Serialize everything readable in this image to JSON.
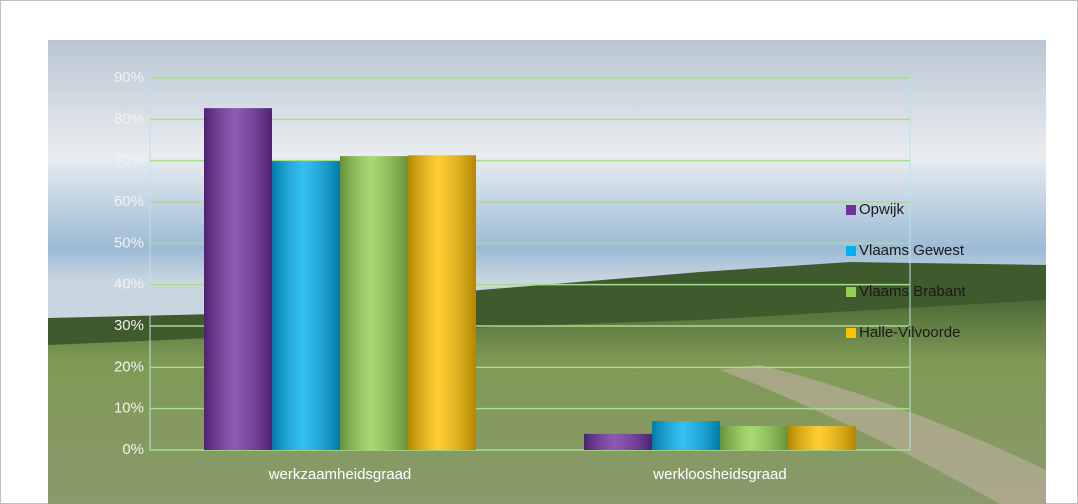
{
  "chart_data": {
    "type": "bar",
    "categories": [
      "werkzaamheidsgraad",
      "werkloosheidsgraad"
    ],
    "series": [
      {
        "name": "Opwijk",
        "color": "#7030a0",
        "values": [
          82.7,
          3.9
        ]
      },
      {
        "name": "Vlaams Gewest",
        "color": "#00b0f0",
        "values": [
          69.9,
          7.0
        ]
      },
      {
        "name": "Vlaams Brabant",
        "color": "#92d050",
        "values": [
          71.1,
          5.8
        ]
      },
      {
        "name": "Halle-Vilvoorde",
        "color": "#ffc000",
        "values": [
          71.3,
          5.8
        ]
      }
    ],
    "ylim": [
      0,
      90
    ],
    "yticks": [
      {
        "value": 0,
        "label": "0%"
      },
      {
        "value": 10,
        "label": "10%"
      },
      {
        "value": 20,
        "label": "20%"
      },
      {
        "value": 30,
        "label": "30%"
      },
      {
        "value": 40,
        "label": "40%"
      },
      {
        "value": 50,
        "label": "50%"
      },
      {
        "value": 60,
        "label": "60%"
      },
      {
        "value": 70,
        "label": "70%"
      },
      {
        "value": 80,
        "label": "80%"
      },
      {
        "value": 90,
        "label": "90%"
      }
    ],
    "grid": true,
    "legend": "right"
  }
}
